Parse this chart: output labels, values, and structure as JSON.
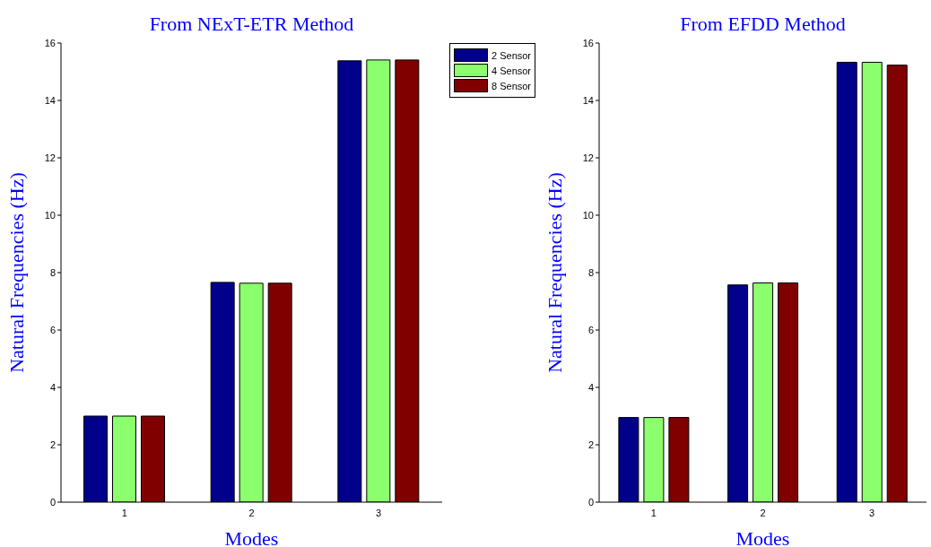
{
  "chart_data": [
    {
      "type": "bar",
      "title": "From NExT-ETR Method",
      "xlabel": "Modes",
      "ylabel": "Natural Frequencies (Hz)",
      "categories": [
        "1",
        "2",
        "3"
      ],
      "legend": "top right",
      "series": [
        {
          "name": "2 Sensor",
          "color": "#00008b",
          "values": [
            3.0,
            7.66,
            15.38
          ]
        },
        {
          "name": "4 Sensor",
          "color": "#8cff6e",
          "values": [
            3.0,
            7.63,
            15.41
          ]
        },
        {
          "name": "8 Sensor",
          "color": "#800000",
          "values": [
            3.0,
            7.63,
            15.41
          ]
        }
      ],
      "ylim": [
        0,
        16
      ],
      "yticks": [
        0,
        2,
        4,
        6,
        8,
        10,
        12,
        14,
        16
      ]
    },
    {
      "type": "bar",
      "title": "From EFDD Method",
      "xlabel": "Modes",
      "ylabel": "Natural Frequencies (Hz)",
      "categories": [
        "1",
        "2",
        "3"
      ],
      "series": [
        {
          "color": "#00008b",
          "values": [
            2.95,
            7.57,
            15.33
          ]
        },
        {
          "color": "#8cff6e",
          "values": [
            2.95,
            7.64,
            15.33
          ]
        },
        {
          "color": "#800000",
          "values": [
            2.95,
            7.64,
            15.23
          ]
        }
      ],
      "ylim": [
        0,
        16
      ],
      "yticks": [
        0,
        2,
        4,
        6,
        8,
        10,
        12,
        14,
        16
      ]
    }
  ]
}
